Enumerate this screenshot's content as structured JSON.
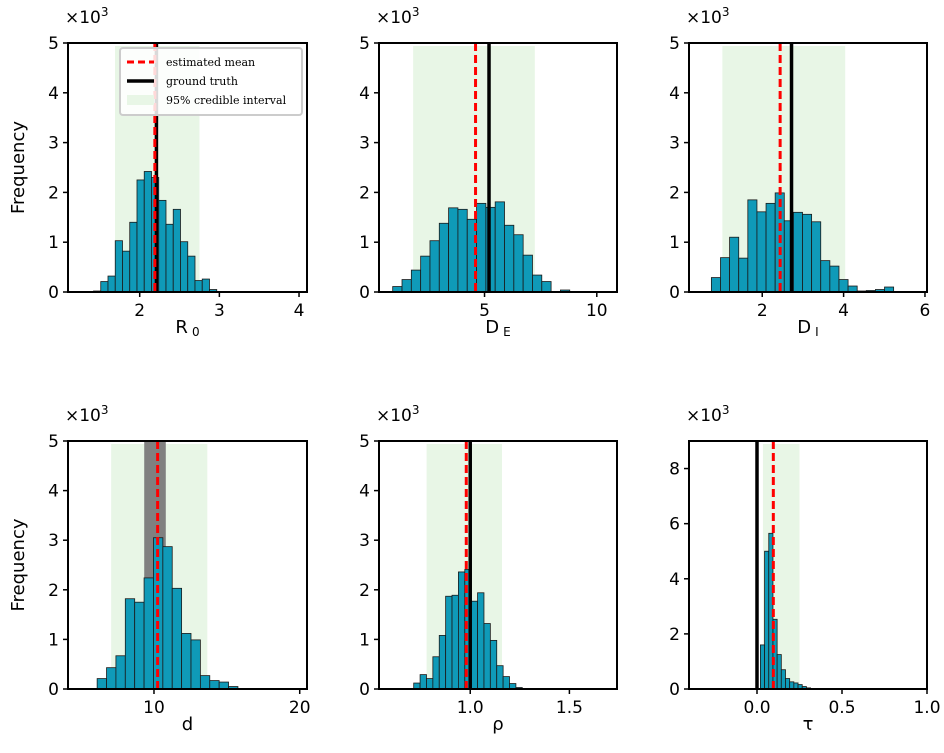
{
  "chart_data": [
    {
      "type": "bar",
      "ylabel": "Frequency",
      "multiplier": "×10",
      "multiplier_exp": "3",
      "xlabel": {
        "main": "R",
        "sub": "0"
      },
      "xlim": [
        1.1,
        4.1
      ],
      "ylim": [
        0,
        5
      ],
      "xticks": [
        2,
        3,
        4
      ],
      "yticks": [
        0,
        1,
        2,
        3,
        4,
        5
      ],
      "bin_start": 1.42,
      "bin_width": 0.091,
      "values": [
        0.02,
        0.21,
        0.32,
        1.03,
        0.82,
        1.4,
        2.25,
        2.42,
        2.3,
        1.84,
        1.36,
        1.66,
        1.01,
        0.72,
        0.23,
        0.26,
        0.05
      ],
      "estimated_mean": 2.19,
      "ground_truth": 2.21,
      "credible_interval": [
        1.69,
        2.75
      ]
    },
    {
      "type": "bar",
      "ylabel": "",
      "multiplier": "×10",
      "multiplier_exp": "3",
      "xlabel": {
        "main": "D",
        "sub": "E"
      },
      "xlim": [
        0.3,
        10.9
      ],
      "ylim": [
        0,
        5
      ],
      "xticks": [
        5,
        10
      ],
      "yticks": [
        0,
        1,
        2,
        3,
        4,
        5
      ],
      "bin_start": 0.91,
      "bin_width": 0.415,
      "values": [
        0.11,
        0.25,
        0.44,
        0.72,
        1.03,
        1.38,
        1.69,
        1.66,
        1.46,
        1.78,
        1.7,
        1.81,
        1.34,
        1.15,
        0.74,
        0.34,
        0.21,
        0.0,
        0.04
      ],
      "estimated_mean": 4.6,
      "ground_truth": 5.2,
      "credible_interval": [
        1.82,
        7.24
      ]
    },
    {
      "type": "bar",
      "ylabel": "",
      "multiplier": "×10",
      "multiplier_exp": "3",
      "xlabel": {
        "main": "D",
        "sub": "I"
      },
      "xlim": [
        0.2,
        6.05
      ],
      "ylim": [
        0,
        5
      ],
      "xticks": [
        2,
        4,
        6
      ],
      "yticks": [
        0,
        1,
        2,
        3,
        4,
        5
      ],
      "bin_start": 0.75,
      "bin_width": 0.224,
      "values": [
        0.29,
        0.69,
        1.1,
        0.68,
        1.85,
        1.61,
        1.78,
        1.99,
        1.43,
        1.6,
        1.56,
        1.41,
        0.63,
        0.52,
        0.25,
        0.12,
        0.02,
        0.03,
        0.05,
        0.1
      ],
      "estimated_mean": 2.44,
      "ground_truth": 2.72,
      "credible_interval": [
        1.02,
        4.04
      ]
    },
    {
      "type": "bar",
      "ylabel": "Frequency",
      "multiplier": "×10",
      "multiplier_exp": "3",
      "xlabel": {
        "main": "d",
        "sub": ""
      },
      "xlim": [
        4.1,
        20.5
      ],
      "ylim": [
        0,
        5
      ],
      "xticks": [
        10,
        20
      ],
      "yticks": [
        0,
        1,
        2,
        3,
        4,
        5
      ],
      "bin_start": 6.1,
      "bin_width": 0.644,
      "values": [
        0.21,
        0.43,
        0.67,
        1.82,
        1.75,
        2.24,
        3.05,
        2.87,
        2.03,
        1.12,
        0.99,
        0.27,
        0.17,
        0.14,
        0.05,
        0.01
      ],
      "estimated_mean": 10.25,
      "ground_truth_range": [
        9.33,
        10.81
      ],
      "credible_interval": [
        7.06,
        13.66
      ]
    },
    {
      "type": "bar",
      "ylabel": "",
      "multiplier": "×10",
      "multiplier_exp": "3",
      "xlabel": {
        "main": "ρ",
        "sub": ""
      },
      "xlim": [
        0.54,
        1.74
      ],
      "ylim": [
        0,
        5
      ],
      "xticks": [
        1.0,
        1.5
      ],
      "xtick_labels": [
        "1.0",
        "1.5"
      ],
      "yticks": [
        0,
        1,
        2,
        3,
        4,
        5
      ],
      "bin_start": 0.715,
      "bin_width": 0.0322,
      "values": [
        0.12,
        0.29,
        0.21,
        0.65,
        1.08,
        1.87,
        1.89,
        2.36,
        2.41,
        1.77,
        1.94,
        1.32,
        0.98,
        0.47,
        0.25,
        0.11,
        0.03,
        0.01
      ],
      "estimated_mean": 0.98,
      "ground_truth": 1.0,
      "credible_interval": [
        0.78,
        1.16
      ]
    },
    {
      "type": "bar",
      "ylabel": "",
      "multiplier": "×10",
      "multiplier_exp": "3",
      "xlabel": {
        "main": "τ",
        "sub": ""
      },
      "xlim": [
        -0.4,
        1.0
      ],
      "ylim": [
        0,
        9
      ],
      "xticks": [
        0.0,
        0.5,
        1.0
      ],
      "xtick_labels": [
        "0.0",
        "0.5",
        "1.0"
      ],
      "yticks": [
        0,
        2,
        4,
        6,
        8
      ],
      "bin_start": 0.02,
      "bin_width": 0.0246,
      "values": [
        1.6,
        5.0,
        5.65,
        2.53,
        1.25,
        0.7,
        0.38,
        0.26,
        0.22,
        0.16,
        0.09,
        0.04,
        0.01
      ],
      "estimated_mean": 0.096,
      "ground_truth": 0.0,
      "credible_interval": [
        0.035,
        0.25
      ]
    }
  ],
  "legend": {
    "placement": "top-right of first panel",
    "items": [
      {
        "label": "estimated mean",
        "style": "dashed",
        "color": "#ff0000"
      },
      {
        "label": "ground truth",
        "style": "solid",
        "color": "#000000"
      },
      {
        "label": "95% credible interval",
        "style": "fill",
        "color": "#e8f6e6"
      }
    ]
  },
  "colors": {
    "bar": "#0f9ab8",
    "bar_edge": "#1a1a1a",
    "mean": "#ff0000",
    "truth": "#000000",
    "truth_range": "#808080",
    "interval": "#e8f6e6"
  }
}
